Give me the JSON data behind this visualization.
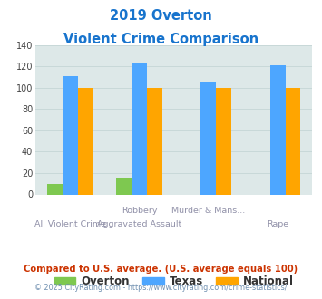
{
  "title_line1": "2019 Overton",
  "title_line2": "Violent Crime Comparison",
  "title_color": "#1874cd",
  "cat_labels_top": [
    "",
    "Robbery",
    "Murder & Mans...",
    ""
  ],
  "cat_labels_bot": [
    "All Violent Crime",
    "Aggravated Assault",
    "",
    "Rape"
  ],
  "overton": [
    10,
    16,
    0,
    0
  ],
  "texas": [
    111,
    123,
    106,
    121
  ],
  "national": [
    100,
    100,
    100,
    100
  ],
  "overton_color": "#7ec850",
  "texas_color": "#4da6ff",
  "national_color": "#ffa500",
  "ylim": [
    0,
    140
  ],
  "yticks": [
    0,
    20,
    40,
    60,
    80,
    100,
    120,
    140
  ],
  "grid_color": "#c8d8d8",
  "plot_bg": "#dde8e8",
  "footnote1": "Compared to U.S. average. (U.S. average equals 100)",
  "footnote2": "© 2025 CityRating.com - https://www.cityrating.com/crime-statistics/",
  "footnote1_color": "#cc3300",
  "footnote2_color": "#7090b0",
  "legend_labels": [
    "Overton",
    "Texas",
    "National"
  ]
}
